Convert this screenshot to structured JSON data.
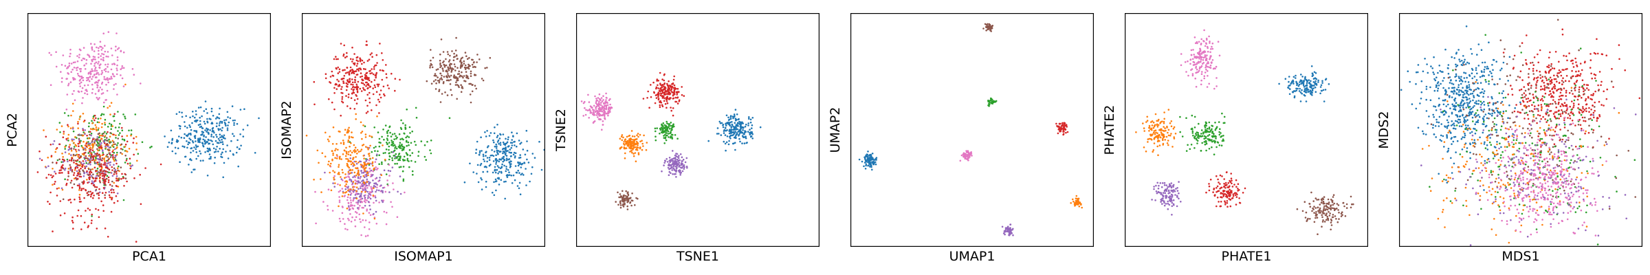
{
  "colors": {
    "blue": "#1f77b4",
    "orange": "#ff7f0e",
    "green": "#2ca02c",
    "red": "#d62728",
    "purple": "#9467bd",
    "brown": "#8c564b",
    "pink": "#e377c2"
  },
  "chart_data": [
    {
      "type": "scatter",
      "xlabel": "PCA1",
      "ylabel": "PCA2",
      "xlim": [
        0,
        100
      ],
      "ylim": [
        0,
        100
      ],
      "grid": false,
      "legend": "none",
      "clusters": [
        {
          "color": "pink",
          "cx": 27,
          "cy": 75,
          "sx": 7,
          "sy": 7,
          "n": 260
        },
        {
          "color": "blue",
          "cx": 74,
          "cy": 47,
          "sx": 7,
          "sy": 6,
          "n": 300
        },
        {
          "color": "green",
          "cx": 30,
          "cy": 44,
          "sx": 7,
          "sy": 8,
          "n": 160
        },
        {
          "color": "orange",
          "cx": 27,
          "cy": 42,
          "sx": 8,
          "sy": 8,
          "n": 200
        },
        {
          "color": "purple",
          "cx": 27,
          "cy": 36,
          "sx": 7,
          "sy": 7,
          "n": 140
        },
        {
          "color": "brown",
          "cx": 29,
          "cy": 37,
          "sx": 7,
          "sy": 7,
          "n": 120
        },
        {
          "color": "red",
          "cx": 26,
          "cy": 31,
          "sx": 9,
          "sy": 10,
          "n": 300
        }
      ]
    },
    {
      "type": "scatter",
      "xlabel": "ISOMAP1",
      "ylabel": "ISOMAP2",
      "xlim": [
        0,
        100
      ],
      "ylim": [
        0,
        100
      ],
      "grid": false,
      "legend": "none",
      "clusters": [
        {
          "color": "red",
          "cx": 23,
          "cy": 72,
          "sx": 6,
          "sy": 6,
          "n": 280
        },
        {
          "color": "brown",
          "cx": 63,
          "cy": 75,
          "sx": 5,
          "sy": 5,
          "n": 220
        },
        {
          "color": "blue",
          "cx": 83,
          "cy": 38,
          "sx": 6,
          "sy": 6,
          "n": 260
        },
        {
          "color": "green",
          "cx": 39,
          "cy": 42,
          "sx": 6,
          "sy": 6,
          "n": 180
        },
        {
          "color": "pink",
          "cx": 24,
          "cy": 22,
          "sx": 6,
          "sy": 7,
          "n": 200
        },
        {
          "color": "purple",
          "cx": 26,
          "cy": 27,
          "sx": 6,
          "sy": 6,
          "n": 160
        },
        {
          "color": "orange",
          "cx": 20,
          "cy": 36,
          "sx": 6,
          "sy": 7,
          "n": 220
        }
      ]
    },
    {
      "type": "scatter",
      "xlabel": "TSNE1",
      "ylabel": "TSNE2",
      "xlim": [
        0,
        100
      ],
      "ylim": [
        0,
        100
      ],
      "grid": false,
      "legend": "none",
      "clusters": [
        {
          "color": "pink",
          "cx": 10,
          "cy": 59,
          "sx": 2.6,
          "sy": 2.6,
          "n": 160
        },
        {
          "color": "red",
          "cx": 37,
          "cy": 66,
          "sx": 2.8,
          "sy": 2.8,
          "n": 180
        },
        {
          "color": "green",
          "cx": 37,
          "cy": 50,
          "sx": 1.8,
          "sy": 1.8,
          "n": 90
        },
        {
          "color": "orange",
          "cx": 23,
          "cy": 44,
          "sx": 2.3,
          "sy": 2.3,
          "n": 130
        },
        {
          "color": "blue",
          "cx": 66,
          "cy": 50,
          "sx": 3.2,
          "sy": 3.2,
          "n": 200
        },
        {
          "color": "purple",
          "cx": 41,
          "cy": 35,
          "sx": 2.2,
          "sy": 2.2,
          "n": 120
        },
        {
          "color": "brown",
          "cx": 20,
          "cy": 20,
          "sx": 1.6,
          "sy": 1.6,
          "n": 70
        }
      ]
    },
    {
      "type": "scatter",
      "xlabel": "UMAP1",
      "ylabel": "UMAP2",
      "xlim": [
        0,
        100
      ],
      "ylim": [
        0,
        100
      ],
      "grid": false,
      "legend": "none",
      "clusters": [
        {
          "color": "blue",
          "cx": 8,
          "cy": 37,
          "sx": 1.4,
          "sy": 1.4,
          "n": 90
        },
        {
          "color": "brown",
          "cx": 57,
          "cy": 94,
          "sx": 0.9,
          "sy": 0.9,
          "n": 40
        },
        {
          "color": "green",
          "cx": 58,
          "cy": 62,
          "sx": 0.8,
          "sy": 0.8,
          "n": 30
        },
        {
          "color": "pink",
          "cx": 48,
          "cy": 39,
          "sx": 1.1,
          "sy": 1.1,
          "n": 50
        },
        {
          "color": "red",
          "cx": 87,
          "cy": 51,
          "sx": 1.2,
          "sy": 1.2,
          "n": 60
        },
        {
          "color": "orange",
          "cx": 93,
          "cy": 19,
          "sx": 0.9,
          "sy": 0.9,
          "n": 40
        },
        {
          "color": "purple",
          "cx": 65,
          "cy": 7,
          "sx": 1.0,
          "sy": 1.0,
          "n": 45
        }
      ]
    },
    {
      "type": "scatter",
      "xlabel": "PHATE1",
      "ylabel": "PHATE2",
      "xlim": [
        0,
        100
      ],
      "ylim": [
        0,
        100
      ],
      "grid": false,
      "legend": "none",
      "clusters": [
        {
          "color": "pink",
          "cx": 32,
          "cy": 81,
          "sx": 3,
          "sy": 4.5,
          "n": 160
        },
        {
          "color": "blue",
          "cx": 74,
          "cy": 69,
          "sx": 4,
          "sy": 2.5,
          "n": 150
        },
        {
          "color": "orange",
          "cx": 14,
          "cy": 49,
          "sx": 3,
          "sy": 3.5,
          "n": 130
        },
        {
          "color": "green",
          "cx": 34,
          "cy": 48,
          "sx": 3.5,
          "sy": 3.5,
          "n": 140
        },
        {
          "color": "purple",
          "cx": 18,
          "cy": 22,
          "sx": 2.5,
          "sy": 3.5,
          "n": 110
        },
        {
          "color": "red",
          "cx": 42,
          "cy": 24,
          "sx": 3,
          "sy": 3.5,
          "n": 130
        },
        {
          "color": "brown",
          "cx": 82,
          "cy": 16,
          "sx": 4,
          "sy": 3,
          "n": 140
        }
      ]
    },
    {
      "type": "scatter",
      "xlabel": "MDS1",
      "ylabel": "MDS2",
      "xlim": [
        0,
        100
      ],
      "ylim": [
        0,
        100
      ],
      "grid": false,
      "legend": "none",
      "clusters": [
        {
          "color": "blue",
          "cx": 26,
          "cy": 62,
          "sx": 9,
          "sy": 11,
          "n": 520
        },
        {
          "color": "red",
          "cx": 67,
          "cy": 65,
          "sx": 10,
          "sy": 10,
          "n": 420
        },
        {
          "color": "brown",
          "cx": 55,
          "cy": 55,
          "sx": 16,
          "sy": 16,
          "n": 180
        },
        {
          "color": "green",
          "cx": 55,
          "cy": 40,
          "sx": 16,
          "sy": 16,
          "n": 200
        },
        {
          "color": "orange",
          "cx": 45,
          "cy": 32,
          "sx": 16,
          "sy": 13,
          "n": 220
        },
        {
          "color": "purple",
          "cx": 58,
          "cy": 34,
          "sx": 15,
          "sy": 13,
          "n": 200
        },
        {
          "color": "pink",
          "cx": 60,
          "cy": 28,
          "sx": 10,
          "sy": 10,
          "n": 380
        }
      ]
    }
  ]
}
